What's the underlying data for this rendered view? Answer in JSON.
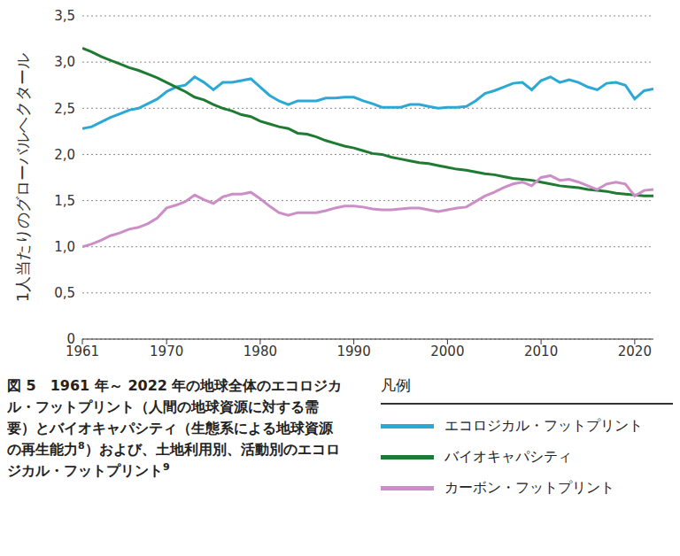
{
  "chart_data": {
    "type": "line",
    "y_label": "1人当たりのグローバルヘクタール",
    "caption": [
      "図 5　1961 年～ 2022 年の地球全体のエコロジカル・フットプリント（人間の地球資源に対する需要）とバイオキャパシティ（生態系による地球資源の再生能力",
      {
        "sup": "8"
      },
      "）および、土地利用別、活動別のエコロジカル・フットプリント",
      {
        "sup": "9"
      }
    ],
    "legend_title": "凡例",
    "legend": "bottom right",
    "grid": true,
    "x": [
      1961,
      1962,
      1963,
      1964,
      1965,
      1966,
      1967,
      1968,
      1969,
      1970,
      1971,
      1972,
      1973,
      1974,
      1975,
      1976,
      1977,
      1978,
      1979,
      1980,
      1981,
      1982,
      1983,
      1984,
      1985,
      1986,
      1987,
      1988,
      1989,
      1990,
      1991,
      1992,
      1993,
      1994,
      1995,
      1996,
      1997,
      1998,
      1999,
      2000,
      2001,
      2002,
      2003,
      2004,
      2005,
      2006,
      2007,
      2008,
      2009,
      2010,
      2011,
      2012,
      2013,
      2014,
      2015,
      2016,
      2017,
      2018,
      2019,
      2020,
      2021,
      2022
    ],
    "xlim": [
      1961,
      2022
    ],
    "xticks": [
      1961,
      1970,
      1980,
      1990,
      2000,
      2010,
      2020
    ],
    "ylim": [
      0,
      3.5
    ],
    "yticks": [
      0,
      {
        "value": 0.5,
        "label": "0,5"
      },
      {
        "value": 1,
        "label": "1,0"
      },
      {
        "value": 1.5,
        "label": "1,5"
      },
      {
        "value": 2,
        "label": "2,0"
      },
      {
        "value": 2.5,
        "label": "2,5"
      },
      {
        "value": 3,
        "label": "3,0"
      },
      {
        "value": 3.5,
        "label": "3,5"
      }
    ],
    "series": [
      {
        "name": "エコロジカル・フットプリント",
        "color": "#2ba8d4",
        "values": [
          2.28,
          2.3,
          2.35,
          2.4,
          2.44,
          2.48,
          2.5,
          2.55,
          2.6,
          2.68,
          2.73,
          2.75,
          2.84,
          2.78,
          2.7,
          2.78,
          2.78,
          2.8,
          2.82,
          2.73,
          2.64,
          2.58,
          2.54,
          2.58,
          2.58,
          2.58,
          2.61,
          2.61,
          2.62,
          2.62,
          2.58,
          2.55,
          2.51,
          2.51,
          2.51,
          2.54,
          2.54,
          2.52,
          2.5,
          2.51,
          2.51,
          2.52,
          2.58,
          2.66,
          2.69,
          2.73,
          2.77,
          2.78,
          2.7,
          2.8,
          2.84,
          2.78,
          2.81,
          2.78,
          2.73,
          2.7,
          2.77,
          2.78,
          2.75,
          2.6,
          2.69,
          2.71
        ]
      },
      {
        "name": "バイオキャパシティ",
        "color": "#1f7a32",
        "values": [
          3.15,
          3.11,
          3.06,
          3.02,
          2.98,
          2.94,
          2.91,
          2.87,
          2.83,
          2.78,
          2.73,
          2.68,
          2.62,
          2.59,
          2.54,
          2.5,
          2.47,
          2.43,
          2.41,
          2.36,
          2.33,
          2.3,
          2.28,
          2.23,
          2.22,
          2.19,
          2.15,
          2.12,
          2.09,
          2.07,
          2.04,
          2.01,
          2.0,
          1.97,
          1.95,
          1.93,
          1.91,
          1.9,
          1.88,
          1.86,
          1.84,
          1.83,
          1.81,
          1.79,
          1.78,
          1.76,
          1.74,
          1.73,
          1.72,
          1.7,
          1.68,
          1.66,
          1.65,
          1.64,
          1.62,
          1.61,
          1.6,
          1.58,
          1.57,
          1.56,
          1.55,
          1.55
        ]
      },
      {
        "name": "カーボン・フットプリント",
        "color": "#cc8ec6",
        "values": [
          1.0,
          1.03,
          1.07,
          1.12,
          1.15,
          1.19,
          1.21,
          1.25,
          1.31,
          1.42,
          1.45,
          1.49,
          1.56,
          1.51,
          1.47,
          1.54,
          1.57,
          1.57,
          1.59,
          1.52,
          1.44,
          1.37,
          1.34,
          1.37,
          1.37,
          1.37,
          1.39,
          1.42,
          1.44,
          1.44,
          1.43,
          1.41,
          1.4,
          1.4,
          1.41,
          1.42,
          1.42,
          1.4,
          1.38,
          1.4,
          1.42,
          1.43,
          1.49,
          1.55,
          1.59,
          1.64,
          1.68,
          1.7,
          1.66,
          1.75,
          1.77,
          1.72,
          1.73,
          1.7,
          1.66,
          1.62,
          1.68,
          1.7,
          1.68,
          1.55,
          1.61,
          1.62
        ]
      }
    ]
  }
}
